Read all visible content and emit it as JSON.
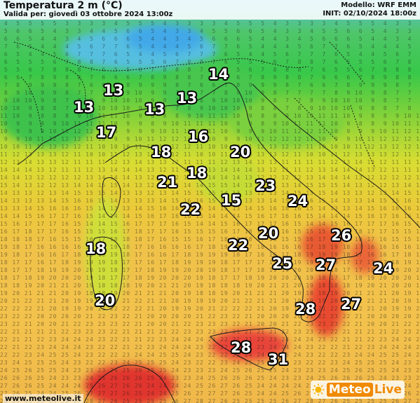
{
  "header": {
    "title": "Temperatura 2 m (°C)",
    "valid": "Valida per: giovedì 03 ottobre 2024 13:00z",
    "model": "Modello: WRF EMM",
    "init": "INIT: 02/10/2024 18:00z"
  },
  "footer": {
    "url": "www.meteolive.it"
  },
  "logo": {
    "part1": "Meteo",
    "part2": "Live"
  },
  "colors": {
    "cold": "#5cc0e0",
    "cool_green": "#38c84a",
    "mild_yellow": "#d8dd32",
    "warm_orange": "#f0b84a",
    "hot_red": "#e84030",
    "brand_orange": "#f08a00"
  },
  "city_values": [
    "14",
    "13",
    "13",
    "13",
    "13",
    "17",
    "16",
    "18",
    "20",
    "18",
    "21",
    "23",
    "15",
    "24",
    "22",
    "20",
    "26",
    "22",
    "18",
    "25",
    "27",
    "24",
    "20",
    "28",
    "27",
    "28",
    "31"
  ]
}
